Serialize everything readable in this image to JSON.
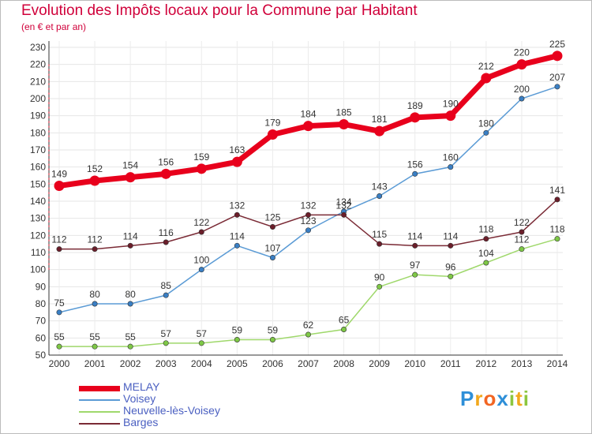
{
  "title": "Evolution des Impôts locaux pour la Commune par Habitant",
  "subtitle": "(en € et par an)",
  "logo": {
    "text": "Proxiti",
    "letters": [
      "P",
      "r",
      "o",
      "x",
      "i",
      "t",
      "i"
    ],
    "colors": [
      "#2e8fd8",
      "#f2a81d",
      "#f26522",
      "#2e8fd8",
      "#8cc63f",
      "#f2a81d",
      "#8cc63f"
    ]
  },
  "chart_data": {
    "type": "line",
    "title": "Evolution des Impôts locaux pour la Commune par Habitant",
    "subtitle": "(en € et par an)",
    "xlabel": "",
    "ylabel": "",
    "ylim": [
      50,
      230
    ],
    "ytick_step": 10,
    "grid": true,
    "legend_position": "bottom-left",
    "x": [
      2000,
      2001,
      2002,
      2003,
      2004,
      2005,
      2006,
      2007,
      2008,
      2009,
      2010,
      2011,
      2012,
      2013,
      2014
    ],
    "series": [
      {
        "name": "MELAY",
        "color": "#e8001c",
        "emphasis": true,
        "values": [
          149,
          152,
          154,
          156,
          159,
          163,
          179,
          184,
          185,
          181,
          189,
          190,
          212,
          220,
          225
        ]
      },
      {
        "name": "Voisey",
        "color": "#5b9bd5",
        "marker": "#3a7fc4",
        "values": [
          75,
          80,
          80,
          85,
          100,
          114,
          107,
          123,
          134,
          143,
          156,
          160,
          180,
          200,
          207
        ]
      },
      {
        "name": "Neuvelle-lès-Voisey",
        "color": "#9fd86b",
        "marker": "#7ec846",
        "values": [
          55,
          55,
          55,
          57,
          57,
          59,
          59,
          62,
          65,
          90,
          97,
          96,
          104,
          112,
          118
        ]
      },
      {
        "name": "Barges",
        "color": "#7a2a35",
        "marker": "#6b1e2a",
        "values": [
          112,
          112,
          114,
          116,
          122,
          132,
          125,
          132,
          132,
          115,
          114,
          114,
          118,
          122,
          141
        ]
      }
    ]
  }
}
